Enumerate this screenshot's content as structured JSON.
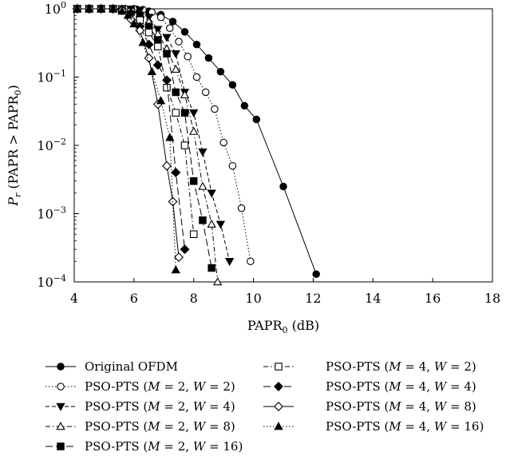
{
  "chart_data": {
    "type": "line",
    "xlabel": "PAPR",
    "xlabel_sub": "0",
    "xlabel_unit": " (dB)",
    "ylabel_parts": {
      "p": "P",
      "r": "r",
      "mid": " (PAPR > PAPR",
      "zero": "0",
      "end": ")"
    },
    "xlim": [
      4,
      18
    ],
    "ylim": [
      0.0001,
      1
    ],
    "yscale": "log",
    "xticks": [
      "4",
      "6",
      "8",
      "10",
      "12",
      "14",
      "16",
      "18"
    ],
    "yticks": [
      {
        "value": 1,
        "label": "10",
        "exp": "0"
      },
      {
        "value": 0.1,
        "label": "10",
        "exp": "−1"
      },
      {
        "value": 0.01,
        "label": "10",
        "exp": "−2"
      },
      {
        "value": 0.001,
        "label": "10",
        "exp": "−3"
      },
      {
        "value": 0.0001,
        "label": "10",
        "exp": "−4"
      }
    ],
    "grid": false,
    "legend_position": "below",
    "series": [
      {
        "name": "Original OFDM",
        "marker": "circle-filled",
        "dash": "solid",
        "x": [
          4.1,
          4.5,
          4.9,
          5.3,
          5.7,
          6.1,
          6.5,
          6.9,
          7.3,
          7.7,
          8.1,
          8.5,
          8.9,
          9.3,
          9.7,
          10.1,
          11.0,
          12.1
        ],
        "y": [
          1,
          1,
          1,
          1,
          1,
          0.98,
          0.92,
          0.82,
          0.65,
          0.46,
          0.3,
          0.19,
          0.12,
          0.077,
          0.038,
          0.024,
          0.0025,
          0.00013
        ]
      },
      {
        "name": "PSO-PTS (M = 2, W = 2)",
        "marker": "circle-open",
        "dash": "dotted",
        "x": [
          4.1,
          4.5,
          4.9,
          5.3,
          5.7,
          6.0,
          6.3,
          6.6,
          6.9,
          7.2,
          7.5,
          7.8,
          8.1,
          8.4,
          8.7,
          9.0,
          9.3,
          9.6,
          9.9
        ],
        "y": [
          1,
          1,
          1,
          1,
          1,
          1,
          0.97,
          0.89,
          0.75,
          0.52,
          0.33,
          0.2,
          0.1,
          0.06,
          0.034,
          0.011,
          0.005,
          0.0012,
          0.0002
        ]
      },
      {
        "name": "PSO-PTS (M = 2, W = 4)",
        "marker": "tri-down-filled",
        "dash": "dashed",
        "x": [
          4.1,
          4.5,
          4.9,
          5.3,
          5.6,
          5.9,
          6.2,
          6.5,
          6.8,
          7.1,
          7.4,
          7.7,
          8.0,
          8.3,
          8.6,
          8.9,
          9.2
        ],
        "y": [
          1,
          1,
          1,
          1,
          1,
          0.99,
          0.95,
          0.75,
          0.5,
          0.38,
          0.22,
          0.06,
          0.03,
          0.008,
          0.002,
          0.0007,
          0.0002
        ]
      },
      {
        "name": "PSO-PTS (M = 2, W = 8)",
        "marker": "tri-up-open",
        "dash": "dashdot",
        "x": [
          4.1,
          4.5,
          4.9,
          5.3,
          5.6,
          5.9,
          6.2,
          6.5,
          6.8,
          7.1,
          7.4,
          7.7,
          8.0,
          8.3,
          8.6,
          8.8
        ],
        "y": [
          1,
          1,
          1,
          1,
          0.99,
          0.96,
          0.85,
          0.65,
          0.43,
          0.26,
          0.13,
          0.055,
          0.016,
          0.0025,
          0.0007,
          0.0001
        ]
      },
      {
        "name": "PSO-PTS (M = 2, W = 16)",
        "marker": "square-filled",
        "dash": "longdash",
        "x": [
          4.1,
          4.5,
          4.9,
          5.3,
          5.6,
          5.9,
          6.2,
          6.5,
          6.8,
          7.1,
          7.4,
          7.7,
          8.0,
          8.3,
          8.6
        ],
        "y": [
          1,
          1,
          1,
          1,
          0.99,
          0.95,
          0.8,
          0.55,
          0.35,
          0.22,
          0.06,
          0.03,
          0.003,
          0.0008,
          0.00016
        ]
      },
      {
        "name": "PSO-PTS (M = 4, W = 2)",
        "marker": "square-open",
        "dash": "dashdot",
        "x": [
          4.1,
          4.5,
          4.9,
          5.3,
          5.6,
          5.9,
          6.2,
          6.5,
          6.8,
          7.1,
          7.4,
          7.7,
          8.0
        ],
        "y": [
          1,
          1,
          1,
          1,
          0.98,
          0.9,
          0.68,
          0.45,
          0.28,
          0.07,
          0.03,
          0.01,
          0.0005
        ]
      },
      {
        "name": "PSO-PTS (M = 4, W = 4)",
        "marker": "diamond-filled",
        "dash": "longdash",
        "x": [
          4.1,
          4.5,
          4.9,
          5.3,
          5.6,
          5.9,
          6.2,
          6.5,
          6.8,
          7.1,
          7.4,
          7.7
        ],
        "y": [
          1,
          1,
          1,
          1,
          0.98,
          0.87,
          0.55,
          0.3,
          0.15,
          0.09,
          0.004,
          0.0003
        ]
      },
      {
        "name": "PSO-PTS (M = 4, W = 8)",
        "marker": "diamond-open",
        "dash": "solid",
        "x": [
          4.1,
          4.5,
          4.9,
          5.3,
          5.6,
          5.9,
          6.2,
          6.5,
          6.8,
          7.1,
          7.3,
          7.5
        ],
        "y": [
          1,
          1,
          1,
          1,
          0.95,
          0.7,
          0.48,
          0.19,
          0.04,
          0.005,
          0.0015,
          0.00023
        ]
      },
      {
        "name": "PSO-PTS (M = 4, W = 16)",
        "marker": "tri-up-filled",
        "dash": "dotted",
        "x": [
          4.1,
          4.5,
          4.9,
          5.3,
          5.6,
          5.8,
          6.0,
          6.3,
          6.6,
          6.9,
          7.2,
          7.4
        ],
        "y": [
          1,
          1,
          1,
          1,
          0.92,
          0.8,
          0.6,
          0.32,
          0.12,
          0.045,
          0.013,
          0.00015
        ]
      }
    ]
  }
}
